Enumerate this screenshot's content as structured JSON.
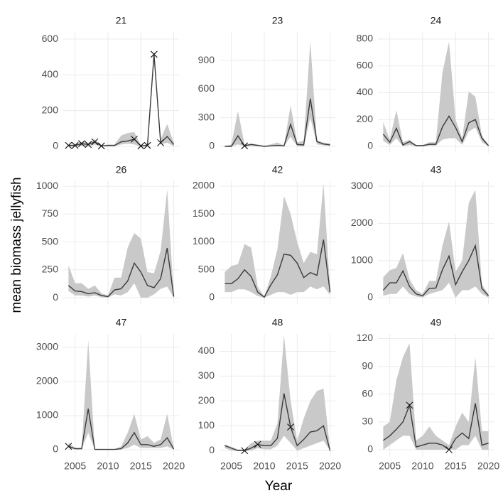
{
  "x_label": "Year",
  "y_label": "mean biomass jellyfish",
  "chart_data": [
    {
      "type": "line",
      "title": "21",
      "x": [
        2004,
        2005,
        2006,
        2007,
        2008,
        2009,
        2010,
        2011,
        2012,
        2013,
        2014,
        2015,
        2016,
        2017,
        2018,
        2019,
        2020
      ],
      "values": [
        5,
        5,
        15,
        10,
        25,
        2,
        5,
        5,
        25,
        30,
        40,
        2,
        5,
        515,
        20,
        55,
        10
      ],
      "lower": [
        0,
        0,
        5,
        0,
        10,
        0,
        0,
        0,
        10,
        15,
        10,
        0,
        0,
        500,
        10,
        20,
        0
      ],
      "upper": [
        10,
        10,
        25,
        20,
        40,
        5,
        10,
        10,
        60,
        75,
        80,
        5,
        10,
        530,
        40,
        125,
        20
      ],
      "points": {
        "x": [
          2004,
          2005,
          2006,
          2007,
          2008,
          2009,
          2014,
          2015,
          2016,
          2017,
          2018
        ],
        "values": [
          5,
          5,
          15,
          10,
          25,
          2,
          40,
          2,
          5,
          515,
          20
        ]
      },
      "color": "#3a3a3a",
      "band_color": "#c9c9c9",
      "grid": true,
      "xlim": [
        2003.2,
        2020.8
      ],
      "xticks": [
        2005,
        2010,
        2015,
        2020
      ],
      "ylim": [
        -36,
        640
      ],
      "yticks": [
        0,
        200,
        400,
        600
      ]
    },
    {
      "type": "line",
      "title": "23",
      "x": [
        2004,
        2005,
        2006,
        2007,
        2008,
        2009,
        2010,
        2011,
        2012,
        2013,
        2014,
        2015,
        2016,
        2017,
        2018,
        2019,
        2020
      ],
      "values": [
        0,
        0,
        110,
        5,
        20,
        10,
        0,
        5,
        10,
        5,
        230,
        20,
        15,
        500,
        50,
        25,
        15
      ],
      "lower": [
        0,
        0,
        20,
        0,
        5,
        0,
        0,
        0,
        0,
        0,
        100,
        0,
        0,
        300,
        20,
        10,
        5
      ],
      "upper": [
        0,
        20,
        370,
        20,
        30,
        20,
        5,
        20,
        40,
        10,
        430,
        40,
        60,
        1100,
        60,
        40,
        30
      ],
      "points": {
        "x": [
          2007
        ],
        "values": [
          5
        ]
      },
      "color": "#3a3a3a",
      "band_color": "#c9c9c9",
      "grid": true,
      "xlim": [
        2003.2,
        2020.8
      ],
      "xticks": [
        2005,
        2010,
        2015,
        2020
      ],
      "ylim": [
        -67,
        1198
      ],
      "yticks": [
        0,
        300,
        600,
        900
      ]
    },
    {
      "type": "line",
      "title": "24",
      "x": [
        2004,
        2005,
        2006,
        2007,
        2008,
        2009,
        2010,
        2011,
        2012,
        2013,
        2014,
        2015,
        2016,
        2017,
        2018,
        2019,
        2020
      ],
      "values": [
        90,
        30,
        135,
        10,
        35,
        5,
        5,
        15,
        15,
        145,
        225,
        140,
        35,
        175,
        200,
        60,
        5
      ],
      "lower": [
        40,
        10,
        60,
        0,
        10,
        0,
        0,
        5,
        5,
        50,
        60,
        60,
        10,
        110,
        140,
        30,
        0
      ],
      "upper": [
        180,
        50,
        270,
        30,
        50,
        10,
        10,
        30,
        30,
        550,
        780,
        200,
        60,
        410,
        370,
        80,
        10
      ],
      "points": {
        "x": [],
        "values": []
      },
      "color": "#3a3a3a",
      "band_color": "#c9c9c9",
      "grid": true,
      "xlim": [
        2003.2,
        2020.8
      ],
      "xticks": [
        2005,
        2010,
        2015,
        2020
      ],
      "ylim": [
        -48,
        853
      ],
      "yticks": [
        0,
        200,
        400,
        600,
        800
      ]
    },
    {
      "type": "line",
      "title": "26",
      "x": [
        2004,
        2005,
        2006,
        2007,
        2008,
        2009,
        2010,
        2011,
        2012,
        2013,
        2014,
        2015,
        2016,
        2017,
        2018,
        2019,
        2020
      ],
      "values": [
        110,
        60,
        55,
        35,
        45,
        20,
        10,
        70,
        80,
        150,
        310,
        230,
        110,
        90,
        170,
        445,
        10
      ],
      "lower": [
        60,
        20,
        20,
        10,
        20,
        5,
        0,
        30,
        20,
        50,
        130,
        0,
        0,
        30,
        80,
        100,
        0
      ],
      "upper": [
        290,
        130,
        130,
        80,
        110,
        40,
        20,
        180,
        180,
        450,
        580,
        530,
        230,
        220,
        420,
        970,
        20
      ],
      "points": {
        "x": [],
        "values": []
      },
      "color": "#3a3a3a",
      "band_color": "#c9c9c9",
      "grid": true,
      "xlim": [
        2003.2,
        2020.8
      ],
      "xticks": [
        2005,
        2010,
        2015,
        2020
      ],
      "ylim": [
        -57,
        1045
      ],
      "yticks": [
        0,
        250,
        500,
        750,
        1000
      ]
    },
    {
      "type": "line",
      "title": "42",
      "x": [
        2004,
        2005,
        2006,
        2007,
        2008,
        2009,
        2010,
        2011,
        2012,
        2013,
        2014,
        2015,
        2016,
        2017,
        2018,
        2019,
        2020
      ],
      "values": [
        250,
        250,
        340,
        500,
        380,
        100,
        10,
        230,
        410,
        780,
        760,
        620,
        360,
        450,
        400,
        1040,
        100
      ],
      "lower": [
        100,
        100,
        150,
        150,
        100,
        30,
        0,
        50,
        100,
        100,
        50,
        100,
        100,
        200,
        150,
        200,
        50
      ],
      "upper": [
        460,
        570,
        600,
        960,
        900,
        200,
        20,
        380,
        870,
        1820,
        1500,
        1000,
        620,
        820,
        780,
        2050,
        150
      ],
      "points": {
        "x": [],
        "values": []
      },
      "color": "#3a3a3a",
      "band_color": "#c9c9c9",
      "grid": true,
      "xlim": [
        2003.2,
        2020.8
      ],
      "xticks": [
        2005,
        2010,
        2015,
        2020
      ],
      "ylim": [
        -115,
        2089
      ],
      "yticks": [
        0,
        500,
        1000,
        1500,
        2000
      ]
    },
    {
      "type": "line",
      "title": "43",
      "x": [
        2004,
        2005,
        2006,
        2007,
        2008,
        2009,
        2010,
        2011,
        2012,
        2013,
        2014,
        2015,
        2016,
        2017,
        2018,
        2019,
        2020
      ],
      "values": [
        200,
        400,
        400,
        720,
        300,
        100,
        50,
        250,
        260,
        750,
        1120,
        350,
        700,
        1000,
        1400,
        250,
        50
      ],
      "lower": [
        50,
        100,
        100,
        300,
        100,
        30,
        10,
        100,
        150,
        200,
        400,
        0,
        200,
        200,
        300,
        100,
        0
      ],
      "upper": [
        550,
        740,
        800,
        1200,
        500,
        200,
        100,
        450,
        450,
        1400,
        2050,
        700,
        1000,
        2550,
        2900,
        350,
        100
      ],
      "points": {
        "x": [],
        "values": []
      },
      "color": "#3a3a3a",
      "band_color": "#c9c9c9",
      "grid": true,
      "xlim": [
        2003.2,
        2020.8
      ],
      "xticks": [
        2005,
        2010,
        2015,
        2020
      ],
      "ylim": [
        -172,
        3135
      ],
      "yticks": [
        0,
        1000,
        2000,
        3000
      ]
    },
    {
      "type": "line",
      "title": "47",
      "x": [
        2004,
        2005,
        2006,
        2007,
        2008,
        2009,
        2010,
        2011,
        2012,
        2013,
        2014,
        2015,
        2016,
        2017,
        2018,
        2019,
        2020
      ],
      "values": [
        100,
        30,
        30,
        1200,
        10,
        10,
        10,
        10,
        30,
        200,
        500,
        150,
        150,
        100,
        150,
        350,
        20
      ],
      "lower": [
        50,
        10,
        10,
        500,
        0,
        0,
        0,
        0,
        10,
        50,
        150,
        50,
        50,
        50,
        50,
        100,
        0
      ],
      "upper": [
        200,
        60,
        60,
        3200,
        20,
        20,
        20,
        20,
        100,
        500,
        1050,
        300,
        400,
        200,
        300,
        1050,
        40
      ],
      "points": {
        "x": [
          2004
        ],
        "values": [
          100
        ]
      },
      "color": "#3a3a3a",
      "band_color": "#c9c9c9",
      "grid": true,
      "xlim": [
        2003.2,
        2020.8
      ],
      "xticks": [
        2005,
        2010,
        2015,
        2020
      ],
      "ylim": [
        -208,
        3396
      ],
      "yticks": [
        0,
        1000,
        2000,
        3000
      ]
    },
    {
      "type": "line",
      "title": "48",
      "x": [
        2004,
        2005,
        2006,
        2007,
        2008,
        2009,
        2010,
        2011,
        2012,
        2013,
        2014,
        2015,
        2016,
        2017,
        2018,
        2019,
        2020
      ],
      "values": [
        20,
        10,
        0,
        0,
        10,
        25,
        20,
        20,
        50,
        230,
        95,
        20,
        45,
        75,
        80,
        100,
        0
      ],
      "lower": [
        10,
        0,
        0,
        0,
        0,
        10,
        5,
        5,
        20,
        60,
        30,
        0,
        10,
        20,
        30,
        40,
        0
      ],
      "upper": [
        25,
        15,
        5,
        5,
        30,
        40,
        40,
        40,
        110,
        465,
        200,
        40,
        130,
        200,
        240,
        250,
        5
      ],
      "points": {
        "x": [
          2007,
          2009,
          2014
        ],
        "values": [
          0,
          25,
          95
        ]
      },
      "color": "#3a3a3a",
      "band_color": "#c9c9c9",
      "grid": true,
      "xlim": [
        2003.2,
        2020.8
      ],
      "xticks": [
        2005,
        2010,
        2015,
        2020
      ],
      "ylim": [
        -25,
        470
      ],
      "yticks": [
        0,
        100,
        200,
        300,
        400
      ]
    },
    {
      "type": "line",
      "title": "49",
      "x": [
        2004,
        2005,
        2006,
        2007,
        2008,
        2009,
        2010,
        2011,
        2012,
        2013,
        2014,
        2015,
        2016,
        2017,
        2018,
        2019,
        2020
      ],
      "values": [
        10,
        15,
        22,
        30,
        48,
        3,
        5,
        7,
        7,
        5,
        0,
        12,
        18,
        12,
        50,
        5,
        7
      ],
      "lower": [
        0,
        5,
        10,
        15,
        15,
        0,
        0,
        0,
        0,
        0,
        0,
        0,
        5,
        5,
        15,
        0,
        0
      ],
      "upper": [
        25,
        30,
        75,
        100,
        115,
        10,
        15,
        25,
        15,
        10,
        5,
        25,
        40,
        30,
        100,
        20,
        20
      ],
      "points": {
        "x": [
          2008,
          2014
        ],
        "values": [
          48,
          0
        ]
      },
      "color": "#3a3a3a",
      "band_color": "#c9c9c9",
      "grid": true,
      "xlim": [
        2003.2,
        2020.8
      ],
      "xticks": [
        2005,
        2010,
        2015,
        2020
      ],
      "ylim": [
        -7.7,
        125
      ],
      "yticks": [
        0,
        30,
        60,
        90,
        120
      ]
    }
  ]
}
